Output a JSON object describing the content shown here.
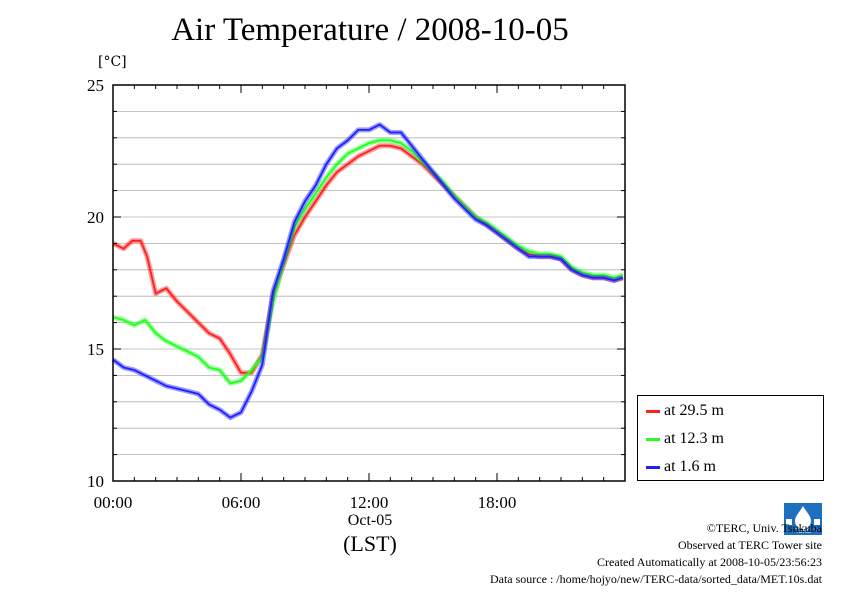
{
  "title": "Air Temperature / 2008-10-05",
  "unit_label": "[°C]",
  "date_label": "Oct-05",
  "timezone_label": "(LST)",
  "credits": {
    "copyright": "©TERC, Univ. Tsukuba",
    "observed": "Observed at TERC Tower site",
    "created": "Created Automatically at 2008-10-05/23:56:23",
    "source": "Data source : /home/hojyo/new/TERC-data/sorted_data/MET.10s.dat"
  },
  "logo_text": "TERC",
  "legend": [
    {
      "label": "at 29.5 m",
      "color": "#ff2020"
    },
    {
      "label": "at 12.3 m",
      "color": "#20ff20"
    },
    {
      "label": "at 1.6 m",
      "color": "#2020ff"
    }
  ],
  "chart_data": {
    "type": "line",
    "title": "Air Temperature / 2008-10-05",
    "ylabel": "[°C]",
    "xlabel": "(LST)",
    "xlim": [
      0,
      24
    ],
    "ylim": [
      10,
      25
    ],
    "x_ticks": [
      {
        "value": 0,
        "label": "00:00"
      },
      {
        "value": 6,
        "label": "06:00"
      },
      {
        "value": 12,
        "label": "12:00"
      },
      {
        "value": 18,
        "label": "18:00"
      }
    ],
    "y_ticks": [
      10,
      15,
      20,
      25
    ],
    "grid": true,
    "legend_position": "bottom-right",
    "series": [
      {
        "name": "at 29.5 m",
        "color": "#ff2020",
        "points": [
          [
            0.0,
            19.0
          ],
          [
            0.5,
            18.8
          ],
          [
            0.9,
            19.1
          ],
          [
            1.3,
            19.1
          ],
          [
            1.6,
            18.5
          ],
          [
            2.0,
            17.1
          ],
          [
            2.5,
            17.3
          ],
          [
            3.0,
            16.8
          ],
          [
            3.5,
            16.4
          ],
          [
            4.0,
            16.0
          ],
          [
            4.5,
            15.6
          ],
          [
            5.0,
            15.4
          ],
          [
            5.5,
            14.8
          ],
          [
            6.0,
            14.1
          ],
          [
            6.5,
            14.1
          ],
          [
            7.0,
            14.8
          ],
          [
            7.5,
            17.0
          ],
          [
            8.0,
            18.2
          ],
          [
            8.5,
            19.3
          ],
          [
            9.0,
            20.0
          ],
          [
            9.5,
            20.6
          ],
          [
            10.0,
            21.2
          ],
          [
            10.5,
            21.7
          ],
          [
            11.0,
            22.0
          ],
          [
            11.5,
            22.3
          ],
          [
            12.0,
            22.5
          ],
          [
            12.5,
            22.7
          ],
          [
            13.0,
            22.7
          ],
          [
            13.5,
            22.6
          ],
          [
            14.0,
            22.3
          ],
          [
            14.5,
            22.0
          ],
          [
            15.0,
            21.6
          ],
          [
            15.5,
            21.2
          ],
          [
            16.0,
            20.8
          ],
          [
            16.5,
            20.4
          ],
          [
            17.0,
            20.0
          ],
          [
            17.5,
            19.7
          ],
          [
            18.0,
            19.4
          ],
          [
            18.5,
            19.1
          ],
          [
            19.0,
            18.8
          ],
          [
            19.5,
            18.6
          ],
          [
            20.0,
            18.5
          ],
          [
            20.5,
            18.5
          ],
          [
            21.0,
            18.4
          ],
          [
            21.5,
            18.0
          ],
          [
            22.0,
            17.8
          ],
          [
            22.5,
            17.7
          ],
          [
            23.0,
            17.7
          ],
          [
            23.5,
            17.6
          ],
          [
            23.9,
            17.7
          ]
        ]
      },
      {
        "name": "at 12.3 m",
        "color": "#20ff20",
        "points": [
          [
            0.0,
            16.2
          ],
          [
            0.5,
            16.1
          ],
          [
            1.0,
            15.9
          ],
          [
            1.5,
            16.1
          ],
          [
            2.0,
            15.6
          ],
          [
            2.5,
            15.3
          ],
          [
            3.0,
            15.1
          ],
          [
            3.5,
            14.9
          ],
          [
            4.0,
            14.7
          ],
          [
            4.5,
            14.3
          ],
          [
            5.0,
            14.2
          ],
          [
            5.5,
            13.7
          ],
          [
            6.0,
            13.8
          ],
          [
            6.5,
            14.2
          ],
          [
            7.0,
            14.7
          ],
          [
            7.5,
            16.8
          ],
          [
            8.0,
            18.3
          ],
          [
            8.5,
            19.6
          ],
          [
            9.0,
            20.3
          ],
          [
            9.5,
            20.9
          ],
          [
            10.0,
            21.5
          ],
          [
            10.5,
            22.0
          ],
          [
            11.0,
            22.4
          ],
          [
            11.5,
            22.6
          ],
          [
            12.0,
            22.8
          ],
          [
            12.5,
            22.9
          ],
          [
            13.0,
            22.9
          ],
          [
            13.5,
            22.8
          ],
          [
            14.0,
            22.5
          ],
          [
            14.5,
            22.1
          ],
          [
            15.0,
            21.7
          ],
          [
            15.5,
            21.3
          ],
          [
            16.0,
            20.8
          ],
          [
            16.5,
            20.4
          ],
          [
            17.0,
            20.0
          ],
          [
            17.5,
            19.8
          ],
          [
            18.0,
            19.5
          ],
          [
            18.5,
            19.2
          ],
          [
            19.0,
            18.9
          ],
          [
            19.5,
            18.7
          ],
          [
            20.0,
            18.6
          ],
          [
            20.5,
            18.6
          ],
          [
            21.0,
            18.5
          ],
          [
            21.5,
            18.1
          ],
          [
            22.0,
            17.9
          ],
          [
            22.5,
            17.8
          ],
          [
            23.0,
            17.8
          ],
          [
            23.5,
            17.7
          ],
          [
            23.9,
            17.8
          ]
        ]
      },
      {
        "name": "at 1.6 m",
        "color": "#2020ff",
        "points": [
          [
            0.0,
            14.6
          ],
          [
            0.5,
            14.3
          ],
          [
            1.0,
            14.2
          ],
          [
            1.5,
            14.0
          ],
          [
            2.0,
            13.8
          ],
          [
            2.5,
            13.6
          ],
          [
            3.0,
            13.5
          ],
          [
            3.5,
            13.4
          ],
          [
            4.0,
            13.3
          ],
          [
            4.5,
            12.9
          ],
          [
            5.0,
            12.7
          ],
          [
            5.5,
            12.4
          ],
          [
            6.0,
            12.6
          ],
          [
            6.5,
            13.4
          ],
          [
            7.0,
            14.4
          ],
          [
            7.5,
            17.2
          ],
          [
            8.0,
            18.4
          ],
          [
            8.5,
            19.8
          ],
          [
            9.0,
            20.6
          ],
          [
            9.5,
            21.2
          ],
          [
            10.0,
            22.0
          ],
          [
            10.5,
            22.6
          ],
          [
            11.0,
            22.9
          ],
          [
            11.5,
            23.3
          ],
          [
            12.0,
            23.3
          ],
          [
            12.5,
            23.5
          ],
          [
            13.0,
            23.2
          ],
          [
            13.5,
            23.2
          ],
          [
            14.0,
            22.7
          ],
          [
            14.5,
            22.2
          ],
          [
            15.0,
            21.7
          ],
          [
            15.5,
            21.2
          ],
          [
            16.0,
            20.7
          ],
          [
            16.5,
            20.3
          ],
          [
            17.0,
            19.9
          ],
          [
            17.5,
            19.7
          ],
          [
            18.0,
            19.4
          ],
          [
            18.5,
            19.1
          ],
          [
            19.0,
            18.8
          ],
          [
            19.5,
            18.5
          ],
          [
            20.0,
            18.5
          ],
          [
            20.5,
            18.5
          ],
          [
            21.0,
            18.4
          ],
          [
            21.5,
            18.0
          ],
          [
            22.0,
            17.8
          ],
          [
            22.5,
            17.7
          ],
          [
            23.0,
            17.7
          ],
          [
            23.5,
            17.6
          ],
          [
            23.9,
            17.7
          ]
        ]
      }
    ]
  }
}
